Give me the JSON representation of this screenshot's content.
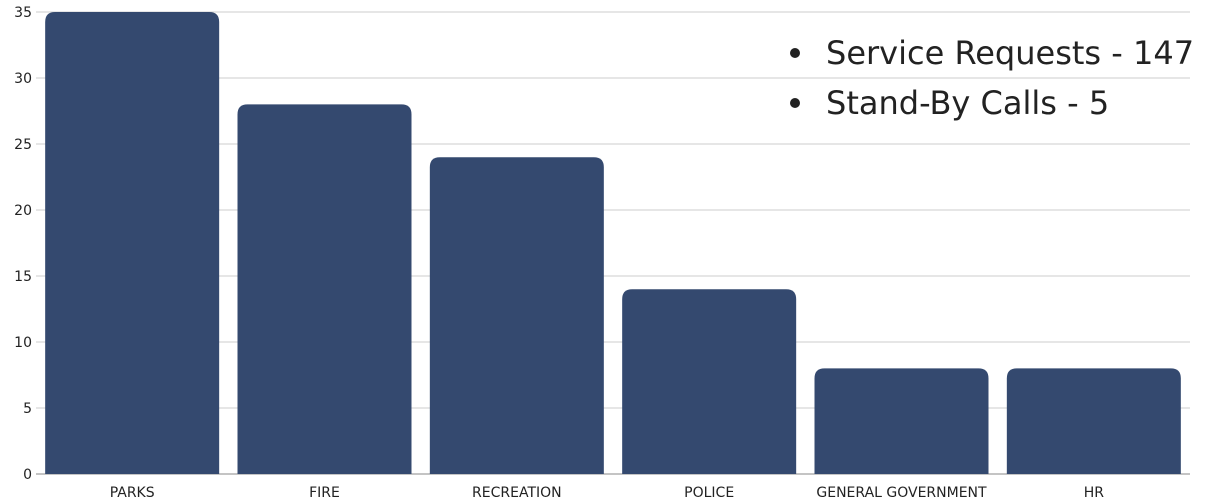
{
  "chart_data": {
    "type": "bar",
    "categories": [
      "PARKS",
      "FIRE",
      "RECREATION",
      "POLICE",
      "GENERAL GOVERNMENT",
      "HR"
    ],
    "values": [
      35,
      28,
      24,
      14,
      8,
      8
    ],
    "ylim": [
      0,
      35
    ],
    "yticks": [
      0,
      5,
      10,
      15,
      20,
      25,
      30,
      35
    ],
    "grid": true,
    "bar_color": "#34496f",
    "grid_color": "#cccccc",
    "annotations": [
      "Service Requests - 147",
      "Stand-By Calls - 5"
    ]
  }
}
